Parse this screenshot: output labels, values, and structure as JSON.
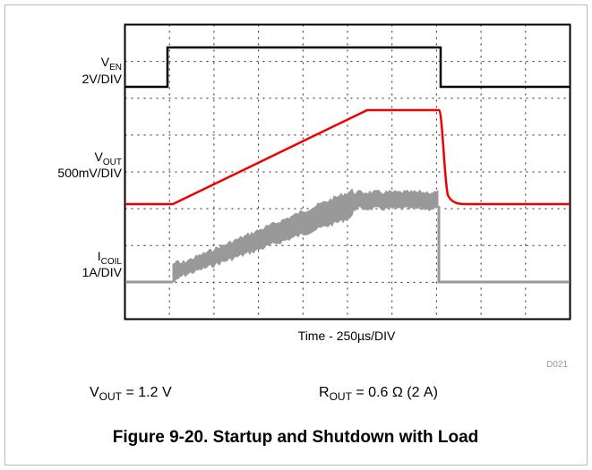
{
  "figure": {
    "traces": [
      {
        "symbol": "V",
        "sub": "EN",
        "scale": "2V/DIV"
      },
      {
        "symbol": "V",
        "sub": "OUT",
        "scale": "500mV/DIV"
      },
      {
        "symbol": "I",
        "sub": "COIL",
        "scale": "1A/DIV"
      }
    ],
    "time_label": "Time - 250µs/DIV",
    "code": "D021",
    "conditions": [
      {
        "symbol": "V",
        "sub": "OUT",
        "rest": " = 1.2 V"
      },
      {
        "symbol": "R",
        "sub": "OUT",
        "rest": " = 0.6 Ω (2 A)"
      }
    ],
    "caption": "Figure 9-20. Startup and Shutdown with Load"
  }
}
